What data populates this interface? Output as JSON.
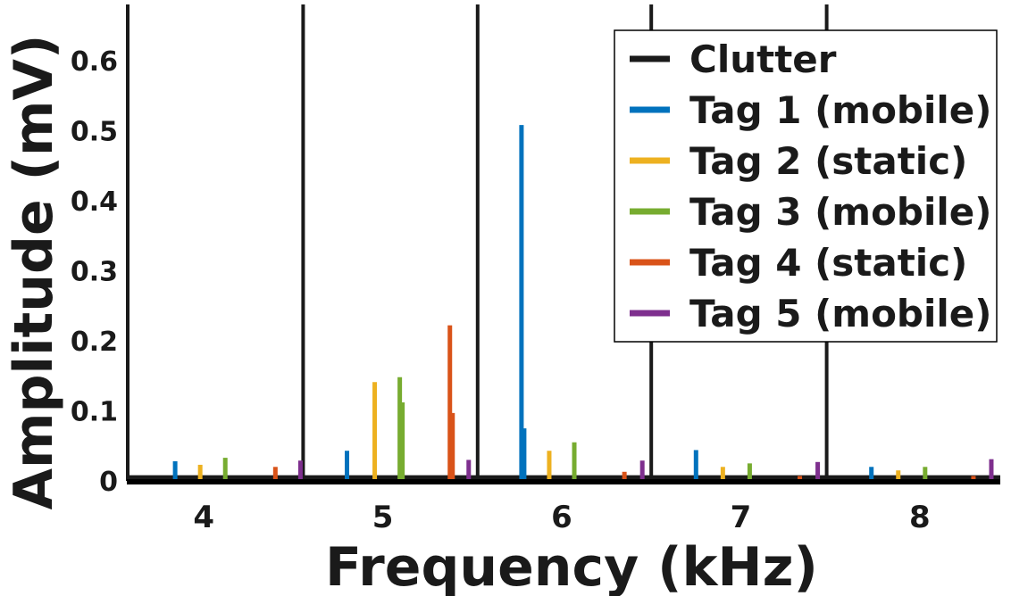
{
  "chart_data": {
    "type": "line",
    "title": "",
    "xlabel": "Frequency (kHz)",
    "ylabel": "Amplitude (mV)",
    "xlim": [
      3.57,
      8.45
    ],
    "ylim": [
      0,
      0.68
    ],
    "xticks": [
      4,
      5,
      6,
      7,
      8
    ],
    "yticks": [
      0,
      0.1,
      0.2,
      0.3,
      0.4,
      0.5,
      0.6
    ],
    "ytick_labels": [
      "0",
      "0.1",
      "0.2",
      "0.3",
      "0.4",
      "0.5",
      "0.6"
    ],
    "legend_position": "top-right",
    "grid": false,
    "noise_floor": 0.005,
    "series": [
      {
        "name": "Clutter",
        "color": "#1a1a1a",
        "peaks": [
          {
            "x": 3.575,
            "y": 0.68
          },
          {
            "x": 4.555,
            "y": 0.68
          },
          {
            "x": 5.53,
            "y": 0.68
          },
          {
            "x": 6.5,
            "y": 0.68
          },
          {
            "x": 7.48,
            "y": 0.68
          }
        ]
      },
      {
        "name": "Tag 1 (mobile)",
        "color": "#0072BD",
        "peaks": [
          {
            "x": 3.84,
            "y": 0.028
          },
          {
            "x": 4.8,
            "y": 0.043
          },
          {
            "x": 5.775,
            "y": 0.508
          },
          {
            "x": 5.79,
            "y": 0.075
          },
          {
            "x": 6.75,
            "y": 0.044
          },
          {
            "x": 7.73,
            "y": 0.02
          }
        ]
      },
      {
        "name": "Tag 2 (static)",
        "color": "#EDB120",
        "peaks": [
          {
            "x": 3.98,
            "y": 0.023
          },
          {
            "x": 4.955,
            "y": 0.141
          },
          {
            "x": 5.93,
            "y": 0.043
          },
          {
            "x": 6.9,
            "y": 0.02
          },
          {
            "x": 7.88,
            "y": 0.015
          }
        ]
      },
      {
        "name": "Tag 3 (mobile)",
        "color": "#77AC30",
        "peaks": [
          {
            "x": 4.12,
            "y": 0.033
          },
          {
            "x": 5.095,
            "y": 0.148
          },
          {
            "x": 5.11,
            "y": 0.112
          },
          {
            "x": 6.07,
            "y": 0.055
          },
          {
            "x": 7.05,
            "y": 0.025
          },
          {
            "x": 8.03,
            "y": 0.02
          }
        ]
      },
      {
        "name": "Tag 4 (static)",
        "color": "#D95319",
        "peaks": [
          {
            "x": 4.4,
            "y": 0.02
          },
          {
            "x": 5.375,
            "y": 0.222
          },
          {
            "x": 5.39,
            "y": 0.097
          },
          {
            "x": 6.35,
            "y": 0.013
          },
          {
            "x": 7.33,
            "y": 0.007
          },
          {
            "x": 8.3,
            "y": 0.007
          }
        ]
      },
      {
        "name": "Tag 5 (mobile)",
        "color": "#7E2F8E",
        "peaks": [
          {
            "x": 4.54,
            "y": 0.029
          },
          {
            "x": 5.48,
            "y": 0.03
          },
          {
            "x": 6.45,
            "y": 0.029
          },
          {
            "x": 7.43,
            "y": 0.027
          },
          {
            "x": 8.4,
            "y": 0.031
          }
        ]
      }
    ]
  }
}
